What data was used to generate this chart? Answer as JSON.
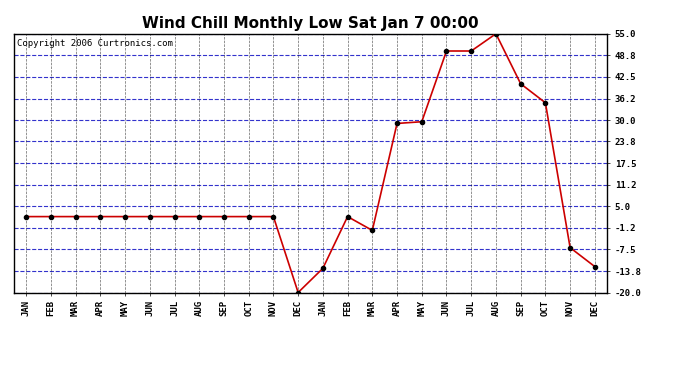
{
  "title": "Wind Chill Monthly Low Sat Jan 7 00:00",
  "copyright": "Copyright 2006 Curtronics.com",
  "x_labels": [
    "JAN",
    "FEB",
    "MAR",
    "APR",
    "MAY",
    "JUN",
    "JUL",
    "AUG",
    "SEP",
    "OCT",
    "NOV",
    "DEC",
    "JAN",
    "FEB",
    "MAR",
    "APR",
    "MAY",
    "JUN",
    "JUL",
    "AUG",
    "SEP",
    "OCT",
    "NOV",
    "DEC"
  ],
  "y_values": [
    2.0,
    2.0,
    2.0,
    2.0,
    2.0,
    2.0,
    2.0,
    2.0,
    2.0,
    2.0,
    2.0,
    -20.0,
    -13.0,
    2.0,
    -2.0,
    29.0,
    29.5,
    50.0,
    50.0,
    55.0,
    40.5,
    35.0,
    -7.0,
    -12.5
  ],
  "ylim": [
    -20.0,
    55.0
  ],
  "yticks": [
    55.0,
    48.8,
    42.5,
    36.2,
    30.0,
    23.8,
    17.5,
    11.2,
    5.0,
    -1.2,
    -7.5,
    -13.8,
    -20.0
  ],
  "line_color": "#cc0000",
  "marker_color": "#000000",
  "bg_color": "#ffffff",
  "plot_bg_color": "#ffffff",
  "grid_color_blue": "#3333cc",
  "grid_color_black": "#000000",
  "border_color": "#000000",
  "title_fontsize": 11,
  "copyright_fontsize": 6.5,
  "tick_fontsize": 6.5,
  "marker_size": 3
}
